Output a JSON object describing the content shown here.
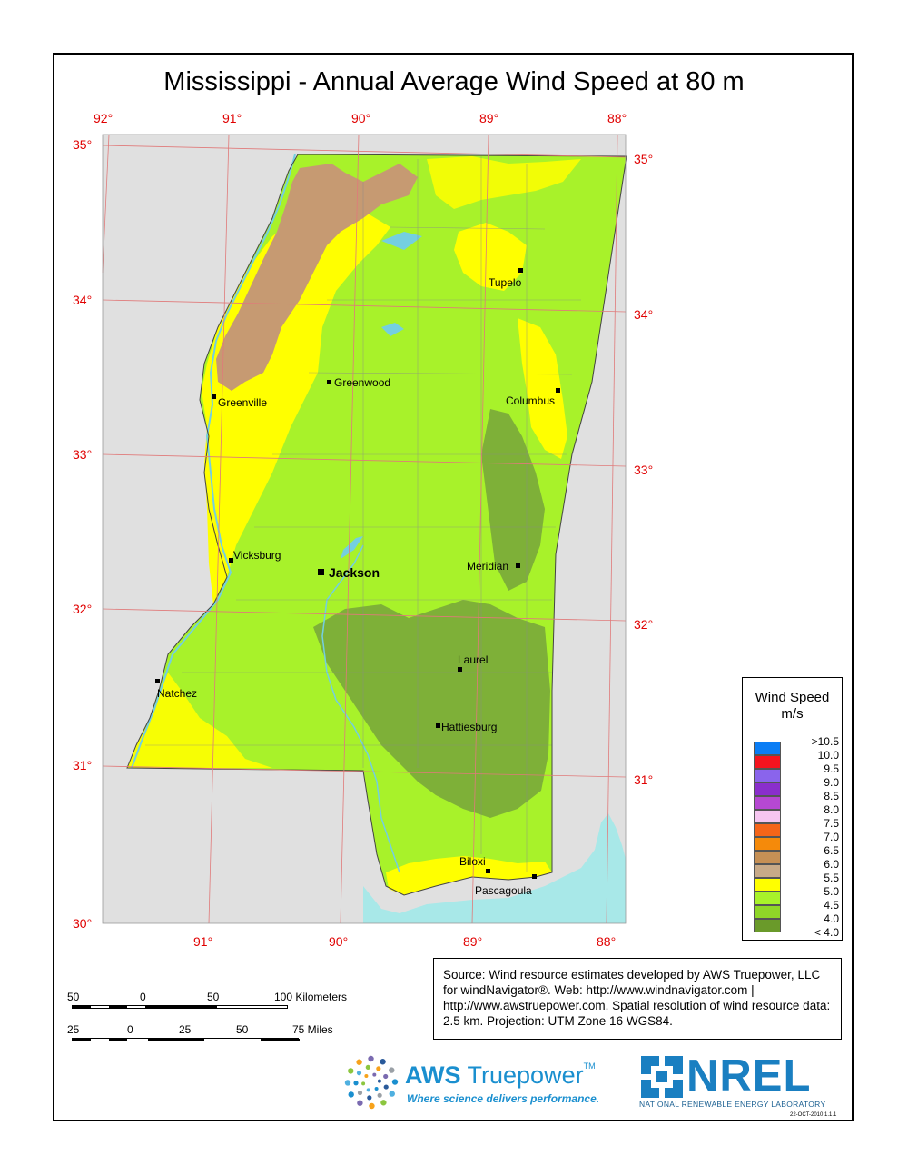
{
  "title": "Mississippi - Annual Average Wind Speed at 80 m",
  "longitude_labels_top": [
    "92°",
    "91°",
    "90°",
    "89°",
    "88°"
  ],
  "longitude_labels_bottom": [
    "91°",
    "90°",
    "89°",
    "88°"
  ],
  "latitude_labels_left": [
    "35°",
    "34°",
    "33°",
    "32°",
    "31°",
    "30°"
  ],
  "latitude_labels_right": [
    "35°",
    "34°",
    "33°",
    "32°",
    "31°"
  ],
  "cities": [
    {
      "name": "Tupelo"
    },
    {
      "name": "Greenwood"
    },
    {
      "name": "Greenville"
    },
    {
      "name": "Columbus"
    },
    {
      "name": "Vicksburg"
    },
    {
      "name": "Jackson"
    },
    {
      "name": "Meridian"
    },
    {
      "name": "Laurel"
    },
    {
      "name": "Natchez"
    },
    {
      "name": "Hattiesburg"
    },
    {
      "name": "Biloxi"
    },
    {
      "name": "Pascagoula"
    }
  ],
  "legend": {
    "title": "Wind Speed",
    "unit": "m/s",
    "items": [
      {
        "label": ">10.5",
        "color": "#0a7df5"
      },
      {
        "label": "10.0",
        "color": "#f5141e"
      },
      {
        "label": "9.5",
        "color": "#8a64ec"
      },
      {
        "label": "9.0",
        "color": "#8a2ecc"
      },
      {
        "label": "8.5",
        "color": "#b648d2"
      },
      {
        "label": "8.0",
        "color": "#f6c6f0"
      },
      {
        "label": "7.5",
        "color": "#f56518"
      },
      {
        "label": "7.0",
        "color": "#f58a0a"
      },
      {
        "label": "6.5",
        "color": "#c69055"
      },
      {
        "label": "6.0",
        "color": "#c8aa88"
      },
      {
        "label": "5.5",
        "color": "#ffff00"
      },
      {
        "label": "5.0",
        "color": "#a8f22a"
      },
      {
        "label": "4.5",
        "color": "#8fd628"
      },
      {
        "label": "4.0",
        "color": "#6a9a2a"
      },
      {
        "label": "< 4.0",
        "color": ""
      }
    ]
  },
  "source_text": "Source: Wind resource estimates developed by AWS Truepower, LLC for windNavigator®. Web: http://www.windnavigator.com | http://www.awstruepower.com. Spatial resolution of wind resource data: 2.5 km. Projection: UTM Zone 16 WGS84.",
  "scale": {
    "km_labels": [
      "50",
      "0",
      "50",
      "100 Kilometers"
    ],
    "mile_labels": [
      "25",
      "0",
      "25",
      "50",
      "75 Miles"
    ]
  },
  "logos": {
    "aws_name_bold": "AWS",
    "aws_name_rest": "Truepower",
    "aws_tm": "TM",
    "aws_tagline": "Where science delivers performance.",
    "nrel_name": "NREL",
    "nrel_subtitle": "NATIONAL RENEWABLE ENERGY LABORATORY",
    "date_stamp": "22-OCT-2010 1.1.1"
  },
  "colors": {
    "outside_land": "#e0e0e0",
    "water": "#a8e8e8",
    "grid": "#e07a7a",
    "lat_lon_text": "#e00000"
  }
}
